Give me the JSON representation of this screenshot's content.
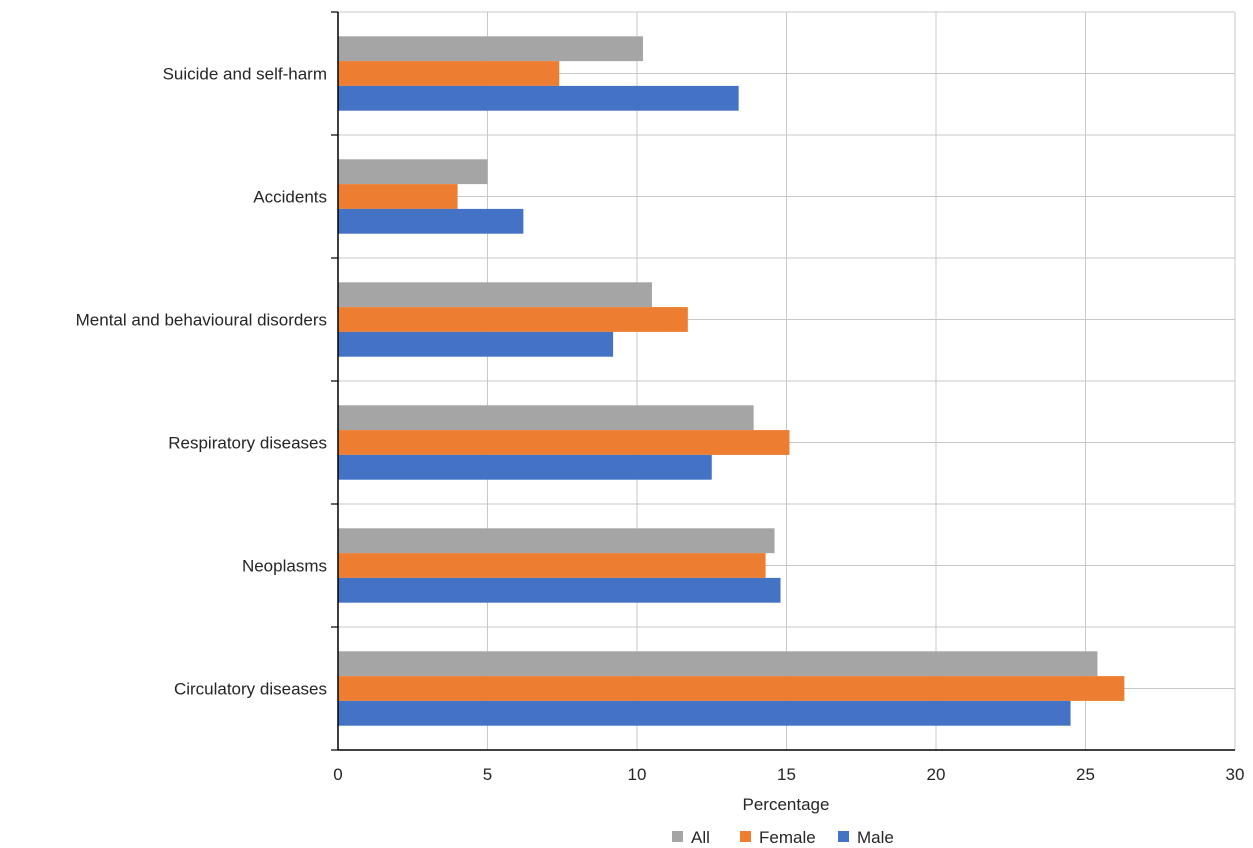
{
  "chart_data": {
    "type": "bar",
    "orientation": "horizontal",
    "categories": [
      "Suicide and self-harm",
      "Accidents",
      "Mental and behavioural disorders",
      "Respiratory diseases",
      "Neoplasms",
      "Circulatory diseases"
    ],
    "series": [
      {
        "name": "All",
        "color": "#A5A5A5",
        "values": [
          10.2,
          5.0,
          10.5,
          13.9,
          14.6,
          25.4
        ]
      },
      {
        "name": "Female",
        "color": "#ED7D31",
        "values": [
          7.4,
          4.0,
          11.7,
          15.1,
          14.3,
          26.3
        ]
      },
      {
        "name": "Male",
        "color": "#4472C4",
        "values": [
          13.4,
          6.2,
          9.2,
          12.5,
          14.8,
          24.5
        ]
      }
    ],
    "xlabel": "Percentage",
    "ylabel": "",
    "xlim": [
      0,
      30
    ],
    "xticks": [
      "0",
      "5",
      "10",
      "15",
      "20",
      "25",
      "30"
    ],
    "grid": true,
    "legend_position": "bottom"
  }
}
